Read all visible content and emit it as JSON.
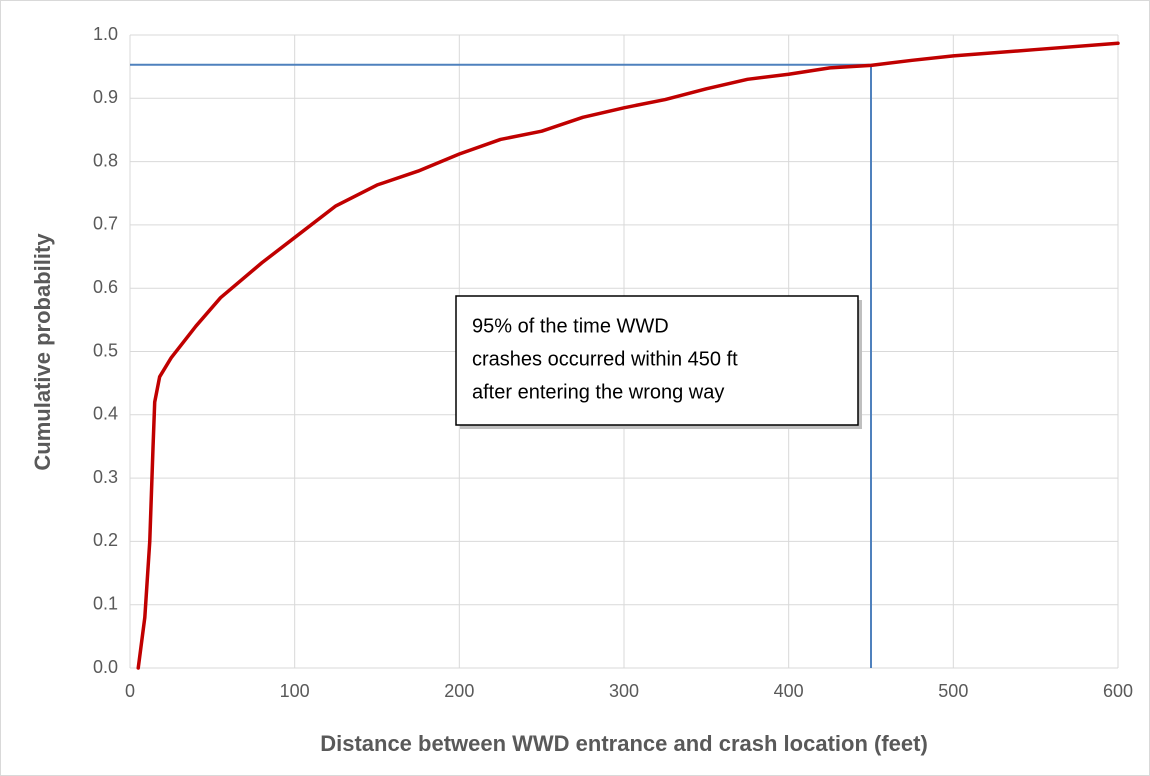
{
  "chart_data": {
    "type": "line",
    "xlabel": "Distance between WWD entrance and crash location (feet)",
    "ylabel": "Cumulative probability",
    "x": [
      5,
      9,
      12,
      14,
      15,
      18,
      25,
      40,
      55,
      80,
      100,
      125,
      150,
      175,
      200,
      225,
      250,
      275,
      300,
      325,
      350,
      375,
      400,
      425,
      450,
      475,
      500,
      550,
      600
    ],
    "values": [
      0.0,
      0.08,
      0.2,
      0.35,
      0.42,
      0.46,
      0.49,
      0.54,
      0.585,
      0.64,
      0.68,
      0.73,
      0.763,
      0.785,
      0.812,
      0.835,
      0.848,
      0.87,
      0.885,
      0.898,
      0.915,
      0.93,
      0.938,
      0.948,
      0.952,
      0.96,
      0.967,
      0.977,
      0.987
    ],
    "color": "#c00000",
    "xlim": [
      0,
      600
    ],
    "xticks": [
      0,
      100,
      200,
      300,
      400,
      500,
      600
    ],
    "ylim": [
      0,
      1
    ],
    "yticks": [
      {
        "value": 0,
        "label": "0.0"
      },
      0.1,
      0.2,
      0.3,
      0.4,
      0.5,
      0.6,
      0.7,
      0.8,
      0.9,
      {
        "value": 1,
        "label": "1.0"
      }
    ],
    "grid": true,
    "reference": {
      "x": 450,
      "y": 0.953,
      "color": "#4f81bd"
    },
    "annotation": [
      "95% of the time WWD",
      "crashes occurred within 450 ft",
      "after entering the wrong way"
    ]
  }
}
